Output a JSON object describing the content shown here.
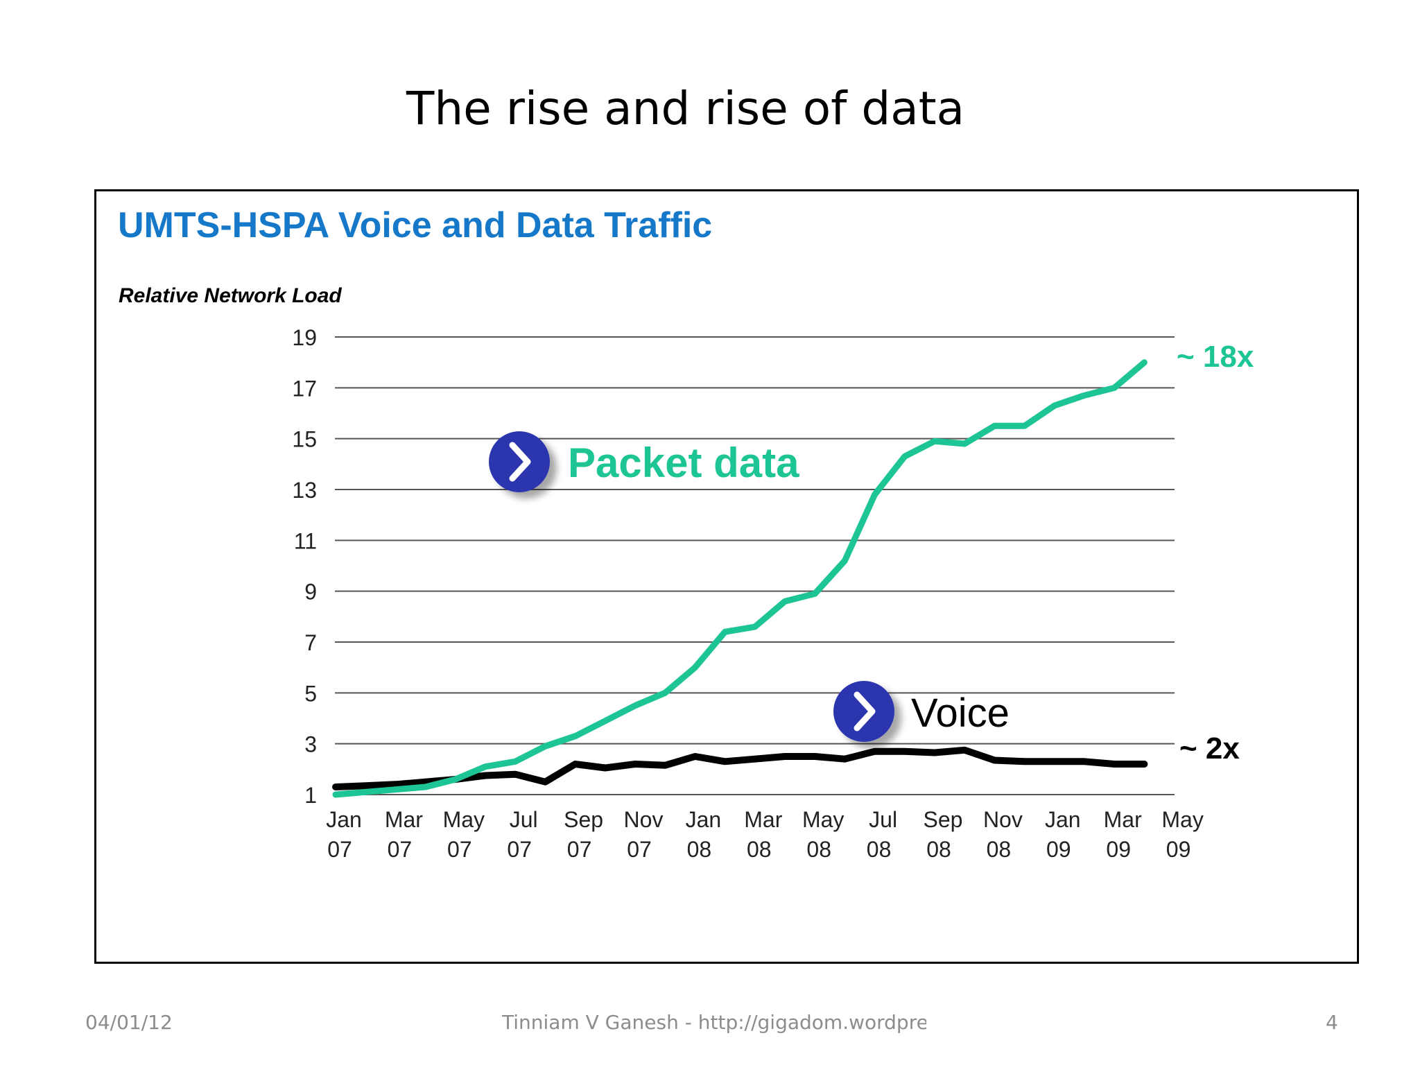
{
  "slide": {
    "title": "The rise and rise of data",
    "footer_date": "04/01/12",
    "footer_author": "Tinniam V Ganesh - http://gigadom.wordpress.com",
    "footer_page": "4"
  },
  "chart_data": {
    "type": "line",
    "title": "UMTS-HSPA Voice and Data Traffic",
    "ylabel": "Relative Network Load",
    "xlabel": "",
    "ylim": [
      1,
      19
    ],
    "yticks": [
      1,
      3,
      5,
      7,
      9,
      11,
      13,
      15,
      17,
      19
    ],
    "grid": true,
    "legend": "inline-labels",
    "x_ticks": [
      {
        "month": "Jan",
        "year": "07"
      },
      {
        "month": "Mar",
        "year": "07"
      },
      {
        "month": "May",
        "year": "07"
      },
      {
        "month": "Jul",
        "year": "07"
      },
      {
        "month": "Sep",
        "year": "07"
      },
      {
        "month": "Nov",
        "year": "07"
      },
      {
        "month": "Jan",
        "year": "08"
      },
      {
        "month": "Mar",
        "year": "08"
      },
      {
        "month": "May",
        "year": "08"
      },
      {
        "month": "Jul",
        "year": "08"
      },
      {
        "month": "Sep",
        "year": "08"
      },
      {
        "month": "Nov",
        "year": "08"
      },
      {
        "month": "Jan",
        "year": "09"
      },
      {
        "month": "Mar",
        "year": "09"
      },
      {
        "month": "May",
        "year": "09"
      }
    ],
    "series": [
      {
        "name": "Packet data",
        "color": "#1dc494",
        "end_label": "~ 18x",
        "x": [
          "2007-01",
          "2007-02",
          "2007-03",
          "2007-04",
          "2007-05",
          "2007-06",
          "2007-07",
          "2007-08",
          "2007-09",
          "2007-10",
          "2007-11",
          "2007-12",
          "2008-01",
          "2008-02",
          "2008-03",
          "2008-04",
          "2008-05",
          "2008-06",
          "2008-07",
          "2008-08",
          "2008-09",
          "2008-10",
          "2008-11",
          "2008-12",
          "2009-01",
          "2009-02",
          "2009-03",
          "2009-04"
        ],
        "values": [
          1.0,
          1.1,
          1.2,
          1.3,
          1.6,
          2.1,
          2.3,
          2.9,
          3.3,
          3.9,
          4.5,
          5.0,
          6.0,
          7.4,
          7.6,
          8.6,
          8.9,
          10.2,
          12.8,
          14.3,
          14.9,
          14.8,
          15.5,
          15.5,
          16.3,
          16.7,
          17.0,
          18.0
        ]
      },
      {
        "name": "Voice",
        "color": "#000000",
        "end_label": "~ 2x",
        "x": [
          "2007-01",
          "2007-02",
          "2007-03",
          "2007-04",
          "2007-05",
          "2007-06",
          "2007-07",
          "2007-08",
          "2007-09",
          "2007-10",
          "2007-11",
          "2007-12",
          "2008-01",
          "2008-02",
          "2008-03",
          "2008-04",
          "2008-05",
          "2008-06",
          "2008-07",
          "2008-08",
          "2008-09",
          "2008-10",
          "2008-11",
          "2008-12",
          "2009-01",
          "2009-02",
          "2009-03",
          "2009-04"
        ],
        "values": [
          1.3,
          1.35,
          1.4,
          1.5,
          1.6,
          1.75,
          1.8,
          1.5,
          2.2,
          2.05,
          2.2,
          2.15,
          2.5,
          2.3,
          2.4,
          2.5,
          2.5,
          2.4,
          2.7,
          2.7,
          2.65,
          2.75,
          2.35,
          2.3,
          2.3,
          2.3,
          2.2,
          2.2
        ]
      }
    ]
  }
}
